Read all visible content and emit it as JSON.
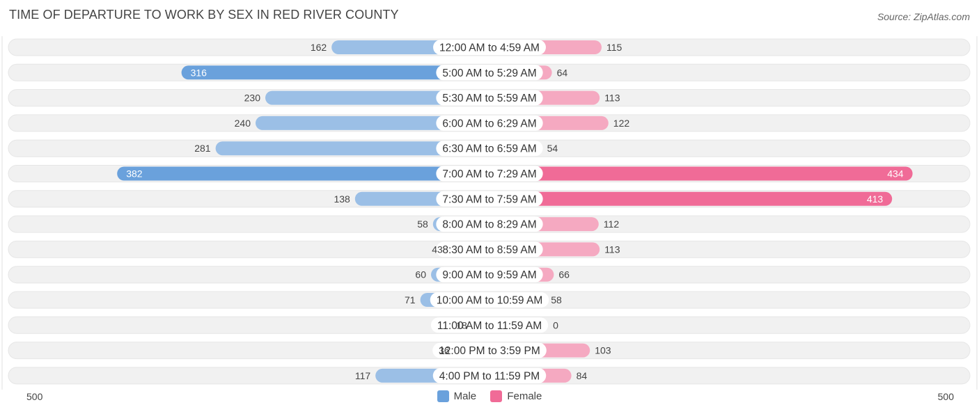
{
  "title": "TIME OF DEPARTURE TO WORK BY SEX IN RED RIVER COUNTY",
  "source": "Source: ZipAtlas.com",
  "colors": {
    "male_light": "#9bbfe6",
    "male_dark": "#6aa1dc",
    "female_light": "#f5a9c1",
    "female_dark": "#f06b97",
    "row_bg": "#f1f1f1",
    "label_bg": "#ffffff"
  },
  "axis": {
    "left_label": "500",
    "right_label": "500"
  },
  "legend": {
    "male": "Male",
    "female": "Female"
  },
  "chart_data": {
    "type": "bar",
    "orientation": "horizontal-diverging",
    "title": "TIME OF DEPARTURE TO WORK BY SEX IN RED RIVER COUNTY",
    "xlim": [
      0,
      500
    ],
    "categories": [
      "12:00 AM to 4:59 AM",
      "5:00 AM to 5:29 AM",
      "5:30 AM to 5:59 AM",
      "6:00 AM to 6:29 AM",
      "6:30 AM to 6:59 AM",
      "7:00 AM to 7:29 AM",
      "7:30 AM to 7:59 AM",
      "8:00 AM to 8:29 AM",
      "8:30 AM to 8:59 AM",
      "9:00 AM to 9:59 AM",
      "10:00 AM to 10:59 AM",
      "11:00 AM to 11:59 AM",
      "12:00 PM to 3:59 PM",
      "4:00 PM to 11:59 PM"
    ],
    "series": [
      {
        "name": "Male",
        "values": [
          162,
          316,
          230,
          240,
          281,
          382,
          138,
          58,
          43,
          60,
          71,
          18,
          36,
          117
        ]
      },
      {
        "name": "Female",
        "values": [
          115,
          64,
          113,
          122,
          54,
          434,
          413,
          112,
          113,
          66,
          58,
          0,
          103,
          84
        ]
      }
    ],
    "value_labels_inside_threshold": 300
  }
}
